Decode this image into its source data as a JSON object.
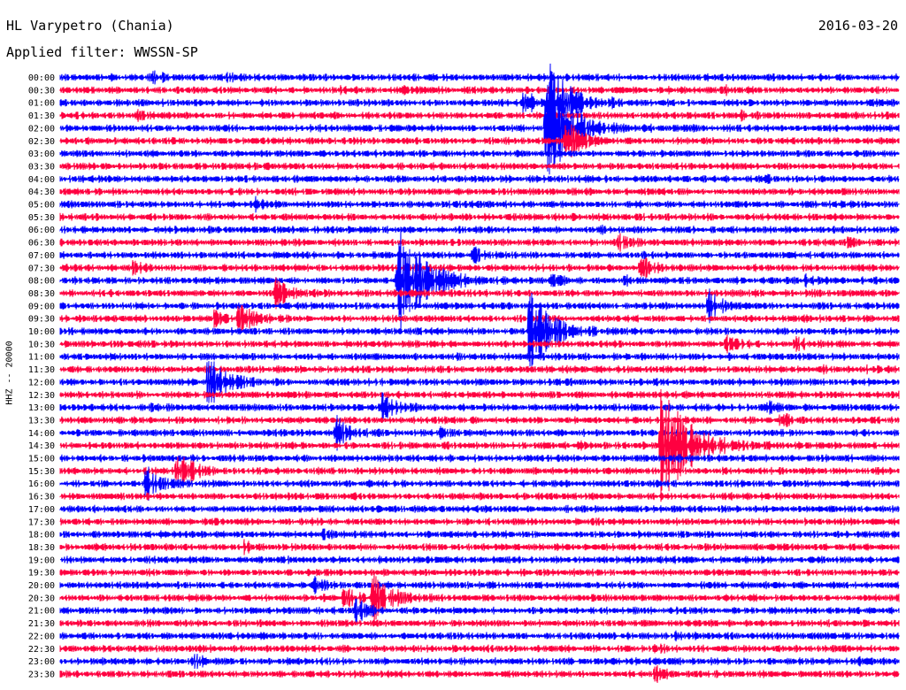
{
  "header": {
    "station": "HL Varypetro (Chania)",
    "filter": "Applied filter: WWSSN-SP",
    "date": "2016-03-20"
  },
  "colors": {
    "even": "#0000ff",
    "odd": "#ff0040"
  },
  "chart_data": {
    "type": "line",
    "title": "HL Varypetro (Chania)",
    "subtitle": "Applied filter: WWSSN-SP",
    "date": "2016-03-20",
    "ylabel": "HHZ -- 20000",
    "xlabel": "",
    "x_unit": "minutes",
    "xlim": [
      0,
      30
    ],
    "rows": [
      "00:00",
      "00:30",
      "01:00",
      "01:30",
      "02:00",
      "02:30",
      "03:00",
      "03:30",
      "04:00",
      "04:30",
      "05:00",
      "05:30",
      "06:00",
      "06:30",
      "07:00",
      "07:30",
      "08:00",
      "08:30",
      "09:00",
      "09:30",
      "10:00",
      "10:30",
      "11:00",
      "11:30",
      "12:00",
      "12:30",
      "13:00",
      "13:30",
      "14:00",
      "14:30",
      "15:00",
      "15:30",
      "16:00",
      "16:30",
      "17:00",
      "17:30",
      "18:00",
      "18:30",
      "19:00",
      "19:30",
      "20:00",
      "20:30",
      "21:00",
      "21:30",
      "22:00",
      "22:30",
      "23:00",
      "23:30"
    ],
    "events": [
      {
        "row": 0,
        "t": 3.3,
        "amp": 0.8
      },
      {
        "row": 0,
        "t": 6.0,
        "amp": 0.3
      },
      {
        "row": 1,
        "t": 10.0,
        "amp": 0.3
      },
      {
        "row": 1,
        "t": 12.3,
        "amp": 0.3
      },
      {
        "row": 1,
        "t": 23.7,
        "amp": 0.5
      },
      {
        "row": 2,
        "t": 16.6,
        "amp": 1.6
      },
      {
        "row": 2,
        "t": 17.5,
        "amp": 6.0
      },
      {
        "row": 2,
        "t": 19.8,
        "amp": 0.3
      },
      {
        "row": 3,
        "t": 2.8,
        "amp": 0.5
      },
      {
        "row": 3,
        "t": 24.3,
        "amp": 0.5
      },
      {
        "row": 4,
        "t": 17.4,
        "amp": 7.8
      },
      {
        "row": 5,
        "t": 18.1,
        "amp": 3.2
      },
      {
        "row": 8,
        "t": 25.3,
        "amp": 0.3
      },
      {
        "row": 10,
        "t": 7.0,
        "amp": 0.8
      },
      {
        "row": 12,
        "t": 19.3,
        "amp": 0.3
      },
      {
        "row": 13,
        "t": 20.0,
        "amp": 1.2
      },
      {
        "row": 13,
        "t": 28.1,
        "amp": 0.6
      },
      {
        "row": 14,
        "t": 14.8,
        "amp": 1.1
      },
      {
        "row": 15,
        "t": 2.6,
        "amp": 0.8
      },
      {
        "row": 15,
        "t": 20.8,
        "amp": 1.6
      },
      {
        "row": 16,
        "t": 12.1,
        "amp": 8.0
      },
      {
        "row": 16,
        "t": 13.7,
        "amp": 0.8
      },
      {
        "row": 16,
        "t": 17.5,
        "amp": 0.8
      },
      {
        "row": 16,
        "t": 20.2,
        "amp": 0.6
      },
      {
        "row": 16,
        "t": 26.6,
        "amp": 0.7
      },
      {
        "row": 17,
        "t": 7.7,
        "amp": 2.2
      },
      {
        "row": 18,
        "t": 23.2,
        "amp": 2.4
      },
      {
        "row": 19,
        "t": 5.5,
        "amp": 0.9
      },
      {
        "row": 19,
        "t": 6.4,
        "amp": 2.4
      },
      {
        "row": 20,
        "t": 16.8,
        "amp": 6.5
      },
      {
        "row": 21,
        "t": 23.8,
        "amp": 1.3
      },
      {
        "row": 21,
        "t": 26.3,
        "amp": 1.1
      },
      {
        "row": 22,
        "t": 14.2,
        "amp": 0.3
      },
      {
        "row": 23,
        "t": 27.3,
        "amp": 0.3
      },
      {
        "row": 23,
        "t": 28.8,
        "amp": 0.3
      },
      {
        "row": 24,
        "t": 5.3,
        "amp": 4.2
      },
      {
        "row": 24,
        "t": 25.6,
        "amp": 0.3
      },
      {
        "row": 26,
        "t": 3.2,
        "amp": 0.5
      },
      {
        "row": 26,
        "t": 11.5,
        "amp": 2.0
      },
      {
        "row": 26,
        "t": 25.3,
        "amp": 0.7
      },
      {
        "row": 27,
        "t": 25.8,
        "amp": 1.2
      },
      {
        "row": 28,
        "t": 9.9,
        "amp": 2.2
      },
      {
        "row": 28,
        "t": 13.6,
        "amp": 0.7
      },
      {
        "row": 29,
        "t": 21.5,
        "amp": 9.0
      },
      {
        "row": 29,
        "t": 18.6,
        "amp": 0.4
      },
      {
        "row": 31,
        "t": 4.2,
        "amp": 3.2
      },
      {
        "row": 32,
        "t": 3.1,
        "amp": 2.4
      },
      {
        "row": 36,
        "t": 9.4,
        "amp": 0.6
      },
      {
        "row": 37,
        "t": 6.6,
        "amp": 0.7
      },
      {
        "row": 40,
        "t": 9.1,
        "amp": 0.8
      },
      {
        "row": 41,
        "t": 10.1,
        "amp": 1.9
      },
      {
        "row": 41,
        "t": 11.2,
        "amp": 3.7
      },
      {
        "row": 42,
        "t": 10.6,
        "amp": 1.6
      },
      {
        "row": 44,
        "t": 22.0,
        "amp": 0.5
      },
      {
        "row": 45,
        "t": 21.3,
        "amp": 0.4
      },
      {
        "row": 46,
        "t": 4.8,
        "amp": 0.8
      },
      {
        "row": 46,
        "t": 28.6,
        "amp": 0.5
      },
      {
        "row": 47,
        "t": 21.3,
        "amp": 0.9
      }
    ]
  }
}
